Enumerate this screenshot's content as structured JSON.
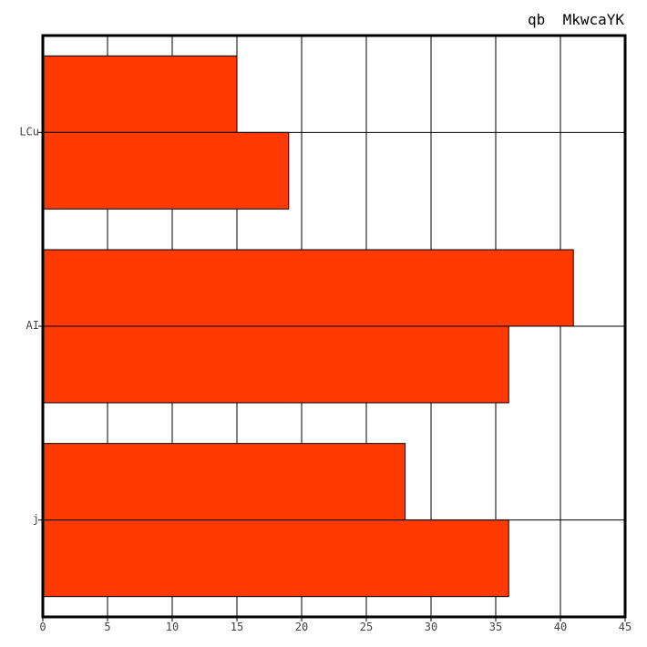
{
  "chart_data": {
    "type": "bar",
    "orientation": "horizontal",
    "title": "qb  MkwcaYK",
    "xlabel": "",
    "ylabel": "",
    "categories": [
      "LCu",
      "AI",
      "j"
    ],
    "series": [
      {
        "values": [
          15,
          41,
          28
        ]
      },
      {
        "values": [
          19,
          36,
          36
        ]
      }
    ],
    "xlim": [
      0,
      45
    ],
    "xticks": [
      0,
      5,
      10,
      15,
      20,
      25,
      30,
      35,
      40,
      45
    ],
    "grid": true,
    "legend": "none",
    "bar_color": "#ff3a00"
  }
}
